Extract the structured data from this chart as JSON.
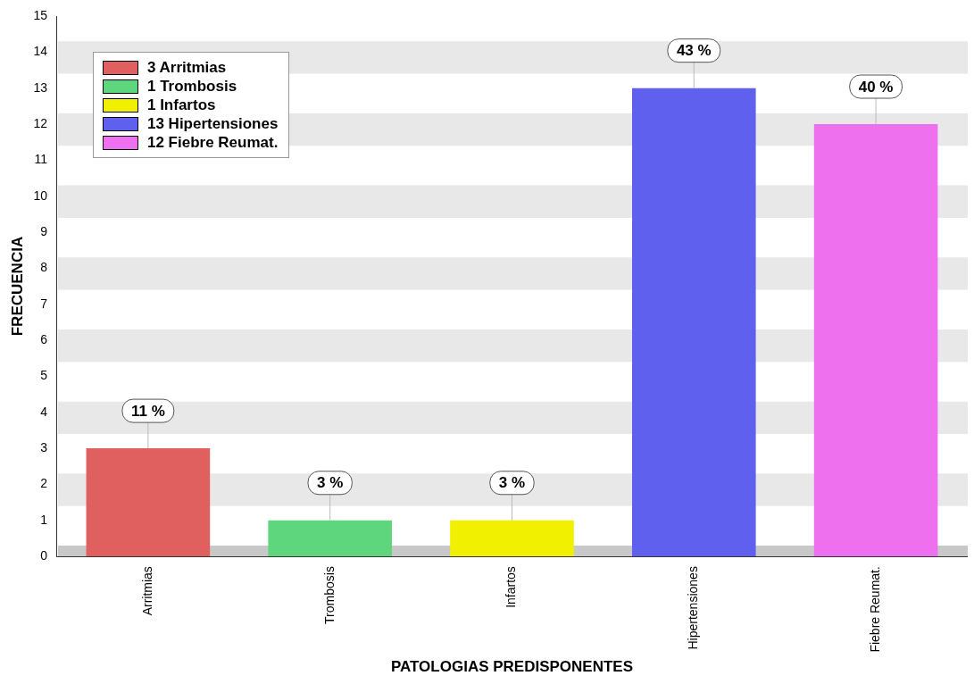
{
  "chart_data": {
    "type": "bar",
    "categories": [
      "Arritmias",
      "Trombosis",
      "Infartos",
      "Hipertensiones",
      "Fiebre Reumat."
    ],
    "series": [
      {
        "name": "3 Arritmias",
        "color": "#e06060",
        "values": [
          3,
          null,
          null,
          null,
          null
        ]
      },
      {
        "name": "1 Trombosis",
        "color": "#5ed67e",
        "values": [
          null,
          1,
          null,
          null,
          null
        ]
      },
      {
        "name": "1 Infartos",
        "color": "#f0f000",
        "values": [
          null,
          null,
          1,
          null,
          null
        ]
      },
      {
        "name": "13 Hipertensiones",
        "color": "#6060ee",
        "values": [
          null,
          null,
          null,
          13,
          null
        ]
      },
      {
        "name": "12 Fiebre Reumat.",
        "color": "#ee70ee",
        "values": [
          null,
          null,
          null,
          null,
          12
        ]
      }
    ],
    "annotations": [
      {
        "text": "11 %",
        "x": "Arritmias",
        "y": 3
      },
      {
        "text": "3 %",
        "x": "Trombosis",
        "y": 1
      },
      {
        "text": "3 %",
        "x": "Infartos",
        "y": 1
      },
      {
        "text": "43 %",
        "x": "Hipertensiones",
        "y": 13
      },
      {
        "text": "40 %",
        "x": "Fiebre Reumat.",
        "y": 12
      }
    ],
    "xlabel": "PATOLOGIAS PREDISPONENTES",
    "ylabel": "FRECUENCIA",
    "ylim": [
      0,
      15
    ],
    "yticks": [
      0,
      1,
      2,
      3,
      4,
      5,
      6,
      7,
      8,
      9,
      10,
      11,
      12,
      13,
      14,
      15
    ],
    "bands": [
      {
        "axis": "y",
        "from": 0,
        "to": 0.3,
        "color": "#c8c8c8"
      },
      {
        "axis": "y",
        "from": 1.4,
        "to": 2.3,
        "color": "#e8e8e8"
      },
      {
        "axis": "y",
        "from": 3.4,
        "to": 4.3,
        "color": "#e8e8e8"
      },
      {
        "axis": "y",
        "from": 5.4,
        "to": 6.3,
        "color": "#e8e8e8"
      },
      {
        "axis": "y",
        "from": 7.4,
        "to": 8.3,
        "color": "#e8e8e8"
      },
      {
        "axis": "y",
        "from": 9.4,
        "to": 10.3,
        "color": "#e8e8e8"
      },
      {
        "axis": "y",
        "from": 11.4,
        "to": 12.3,
        "color": "#e8e8e8"
      },
      {
        "axis": "y",
        "from": 13.4,
        "to": 14.3,
        "color": "#e8e8e8"
      }
    ],
    "legend": "top left"
  }
}
